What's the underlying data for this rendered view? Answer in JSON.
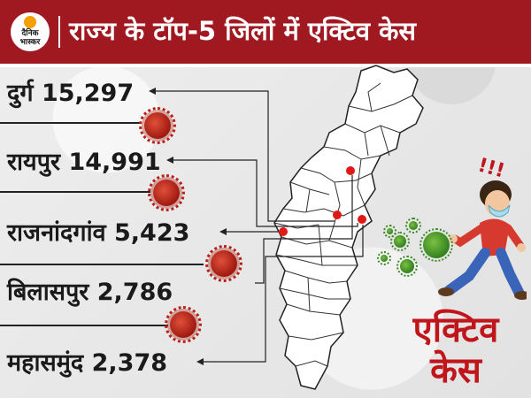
{
  "header": {
    "logo_text": "दैनिक भास्कर",
    "title": "राज्य के टॉप-5 जिलों में एक्टिव केस"
  },
  "districts": [
    {
      "label": "दुर्ग 15,297"
    },
    {
      "label": "रायपुर 14,991"
    },
    {
      "label": "राजनांदगांव 5,423"
    },
    {
      "label": "बिलासपुर 2,786"
    },
    {
      "label": "महासमुंद 2,378"
    }
  ],
  "illustration": {
    "alarm": "!!!",
    "caption_line1": "एक्टिव",
    "caption_line2": "केस"
  },
  "colors": {
    "header_bg": "#a01820",
    "accent_red": "#c0161b",
    "map_dot": "#e01818",
    "virus_green": "#4a9a2a"
  }
}
